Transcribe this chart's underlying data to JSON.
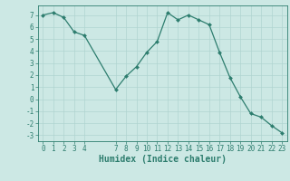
{
  "x": [
    0,
    1,
    2,
    3,
    4,
    7,
    8,
    9,
    10,
    11,
    12,
    13,
    14,
    15,
    16,
    17,
    18,
    19,
    20,
    21,
    22,
    23
  ],
  "y": [
    7.0,
    7.2,
    6.8,
    5.6,
    5.3,
    0.8,
    1.9,
    2.7,
    3.9,
    4.8,
    7.2,
    6.6,
    7.0,
    6.6,
    6.2,
    3.9,
    1.8,
    0.2,
    -1.2,
    -1.5,
    -2.2,
    -2.8
  ],
  "xlabel": "Humidex (Indice chaleur)",
  "xticks": [
    0,
    1,
    2,
    3,
    4,
    7,
    8,
    9,
    10,
    11,
    12,
    13,
    14,
    15,
    16,
    17,
    18,
    19,
    20,
    21,
    22,
    23
  ],
  "xlim": [
    -0.5,
    23.5
  ],
  "ylim": [
    -3.5,
    7.8
  ],
  "yticks": [
    -3,
    -2,
    -1,
    0,
    1,
    2,
    3,
    4,
    5,
    6,
    7
  ],
  "line_color": "#2d7d6e",
  "marker_color": "#2d7d6e",
  "bg_color": "#cce8e4",
  "grid_color": "#b0d4d0",
  "tick_fontsize": 5.5,
  "xlabel_fontsize": 7.0
}
